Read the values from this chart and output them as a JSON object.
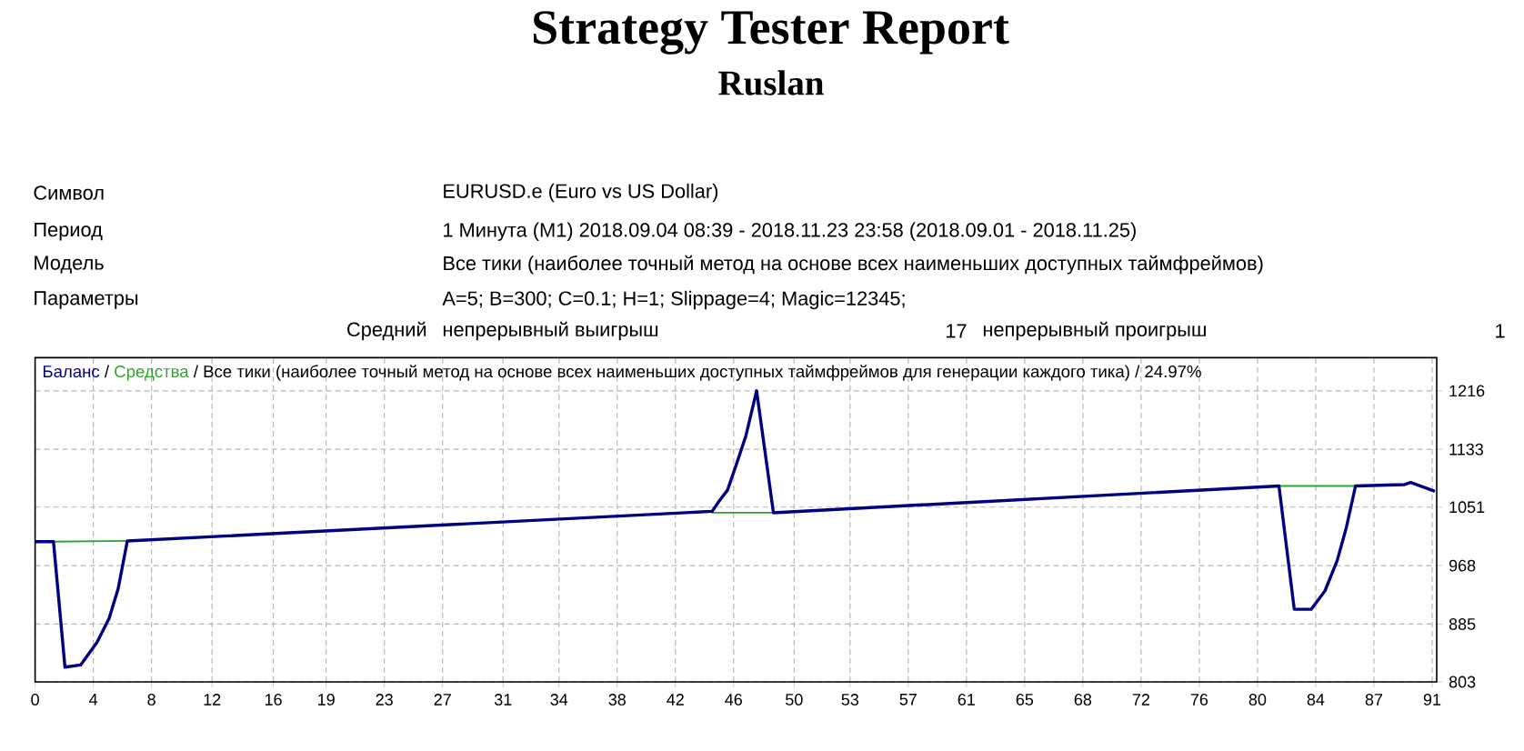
{
  "chart_data": {
    "type": "line",
    "title": "Strategy Tester Report",
    "subtitle": "Ruslan",
    "annotations": [
      "Символ",
      "EURUSD.e (Euro vs US Dollar)",
      "Период",
      "1 Минута (M1) 2018.09.04 08:39 - 2018.11.23 23:58 (2018.09.01 - 2018.11.25)",
      "Модель",
      "Все тики (наиболее точный метод на основе всех наименьших доступных таймфреймов)",
      "Параметры",
      "A=5; B=300; C=0.1; H=1; Slippage=4; Magic=12345;",
      "Средний",
      "непрерывный выигрыш",
      "17",
      "непрерывный проигрыш",
      "1",
      "/",
      "/ Все тики (наиболее точный метод на основе всех наименьших доступных таймфреймов для генерации каждого тика) / 24.97%"
    ],
    "series": [
      {
        "name": "Баланс",
        "color": "#000080",
        "x": [
          0,
          1.2,
          1.95,
          2.97,
          4.04,
          4.83,
          5.43,
          6.02,
          44.2,
          44.7,
          45.2,
          45.8,
          46.4,
          47.1,
          48.2,
          81.2,
          82.2,
          83.3,
          84.2,
          85.0,
          85.6,
          86.2,
          89.4,
          89.8,
          91.3
        ],
        "values": [
          1002,
          1002,
          824,
          827,
          859,
          893,
          936,
          1003,
          1045,
          1061,
          1075,
          1113,
          1152,
          1216,
          1043,
          1081,
          906,
          906,
          932,
          975,
          1022,
          1081,
          1083,
          1086,
          1074
        ]
      },
      {
        "name": "Средства",
        "color": "#2fa52f",
        "x": [
          1.2,
          6.02,
          25,
          44.2,
          48.2,
          65,
          81.2,
          86.2
        ],
        "values": [
          1002,
          1003,
          null,
          1043,
          1043,
          null,
          1081,
          1081
        ]
      }
    ],
    "xlim": [
      0,
      91.5
    ],
    "ylim": [
      803,
      1263
    ],
    "xticks": [
      0,
      {
        "value": 3.8,
        "label": "4"
      },
      {
        "value": 7.6,
        "label": "8"
      },
      {
        "value": 11.55,
        "label": "12"
      },
      {
        "value": 15.55,
        "label": "16"
      },
      19,
      {
        "value": 22.8,
        "label": "23"
      },
      {
        "value": 26.6,
        "label": "27"
      },
      {
        "value": 30.55,
        "label": "31"
      },
      {
        "value": 34.2,
        "label": "34"
      },
      38,
      {
        "value": 41.8,
        "label": "42"
      },
      {
        "value": 45.6,
        "label": "46"
      },
      {
        "value": 49.55,
        "label": "50"
      },
      {
        "value": 53.2,
        "label": "53"
      },
      57,
      {
        "value": 60.8,
        "label": "61"
      },
      {
        "value": 64.6,
        "label": "65"
      },
      {
        "value": 68.4,
        "label": "68"
      },
      {
        "value": 72.2,
        "label": "72"
      },
      76,
      {
        "value": 79.8,
        "label": "80"
      },
      {
        "value": 83.6,
        "label": "84"
      },
      {
        "value": 87.4,
        "label": "87"
      },
      {
        "value": 91.2,
        "label": "91"
      }
    ],
    "yticks": [
      803,
      885,
      968,
      1051,
      1133,
      1216
    ],
    "grid": true,
    "legend": "top left"
  }
}
